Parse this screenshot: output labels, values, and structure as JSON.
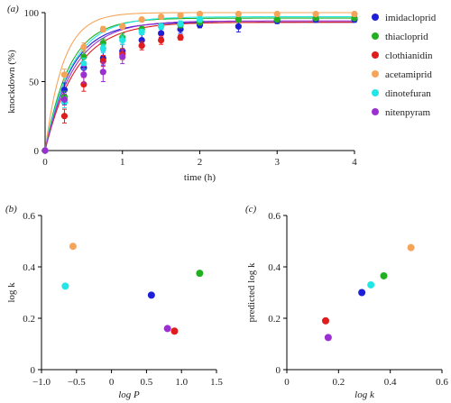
{
  "colors": {
    "imidacloprid": "#1f1fd8",
    "thiacloprid": "#22b022",
    "clothianidin": "#e01c1c",
    "acetamiprid": "#f5a55a",
    "dinotefuran": "#22e6e6",
    "nitenpyram": "#9b30d0"
  },
  "panel_labels": {
    "a": "(a)",
    "b": "(b)",
    "c": "(c)"
  },
  "chart_data": [
    {
      "panel": "a",
      "type": "line",
      "xlabel": "time (h)",
      "ylabel": "knockdown (%)",
      "xlim": [
        0,
        4
      ],
      "ylim": [
        0,
        100
      ],
      "xticks": [
        0,
        1,
        2,
        3,
        4
      ],
      "yticks": [
        0,
        50,
        100
      ],
      "grid": false,
      "legend_position": "right",
      "series": [
        {
          "name": "imidacloprid",
          "color": "#1f1fd8",
          "k": 3.0,
          "plateau": 93,
          "x": [
            0,
            0.25,
            0.5,
            0.75,
            1,
            1.25,
            1.5,
            1.75,
            2,
            2.5,
            3,
            3.5,
            4
          ],
          "y": [
            0,
            44,
            60,
            67,
            72,
            80,
            85,
            88,
            91,
            90,
            94,
            95,
            95
          ],
          "err": [
            0,
            5,
            4,
            5,
            5,
            4,
            3,
            3,
            2,
            4,
            2,
            2,
            2
          ]
        },
        {
          "name": "thiacloprid",
          "color": "#22b022",
          "k": 3.2,
          "plateau": 96,
          "x": [
            0,
            0.25,
            0.5,
            0.75,
            1,
            1.25,
            1.5,
            1.75,
            2,
            2.5,
            3,
            3.5,
            4
          ],
          "y": [
            0,
            39,
            68,
            78,
            82,
            88,
            90,
            91,
            93,
            95,
            95,
            96,
            96
          ],
          "err": [
            0,
            4,
            4,
            3,
            3,
            2,
            2,
            2,
            2,
            1,
            1,
            1,
            1
          ]
        },
        {
          "name": "clothianidin",
          "color": "#e01c1c",
          "k": 2.5,
          "plateau": 93,
          "x": [
            0,
            0.25,
            0.5,
            0.75,
            1,
            1.25,
            1.5,
            1.75
          ],
          "y": [
            0,
            25,
            48,
            65,
            70,
            76,
            80,
            82
          ],
          "err": [
            0,
            5,
            5,
            4,
            4,
            3,
            3,
            2
          ]
        },
        {
          "name": "acetamiprid",
          "color": "#f5a55a",
          "k": 4.3,
          "plateau": 100,
          "x": [
            0,
            0.25,
            0.5,
            0.75,
            1,
            1.25,
            1.5,
            1.75,
            2,
            2.5,
            3,
            3.5,
            4
          ],
          "y": [
            0,
            55,
            75,
            88,
            90,
            95,
            97,
            98,
            99,
            99,
            99,
            99,
            99
          ],
          "err": [
            0,
            4,
            3,
            2,
            2,
            1,
            1,
            1,
            1,
            1,
            1,
            1,
            1
          ]
        },
        {
          "name": "dinotefuran",
          "color": "#22e6e6",
          "k": 2.9,
          "plateau": 97,
          "x": [
            0,
            0.25,
            0.5,
            0.75,
            1,
            1.25,
            1.5,
            1.75,
            2
          ],
          "y": [
            0,
            35,
            63,
            74,
            80,
            86,
            90,
            92,
            95
          ],
          "err": [
            0,
            4,
            4,
            3,
            3,
            2,
            2,
            2,
            2
          ]
        },
        {
          "name": "nitenpyram",
          "color": "#9b30d0",
          "k": 2.7,
          "plateau": 94,
          "x": [
            0,
            0.25,
            0.5,
            0.75,
            1
          ],
          "y": [
            0,
            37,
            55,
            57,
            68
          ],
          "err": [
            0,
            4,
            6,
            7,
            5
          ]
        }
      ]
    },
    {
      "panel": "b",
      "type": "scatter",
      "xlabel": "log P",
      "ylabel": "log k",
      "xlim": [
        -1.0,
        1.5
      ],
      "ylim": [
        0,
        0.6
      ],
      "xticks": [
        "−1.0",
        "−0.5",
        "0",
        "0.5",
        "1.0",
        "1.5"
      ],
      "xtick_values": [
        -1.0,
        -0.5,
        0,
        0.5,
        1.0,
        1.5
      ],
      "yticks": [
        "0",
        "0.2",
        "0.4",
        "0.6"
      ],
      "ytick_values": [
        0,
        0.2,
        0.4,
        0.6
      ],
      "points": [
        {
          "name": "acetamiprid",
          "x": -0.55,
          "y": 0.48
        },
        {
          "name": "dinotefuran",
          "x": -0.66,
          "y": 0.325
        },
        {
          "name": "imidacloprid",
          "x": 0.57,
          "y": 0.29
        },
        {
          "name": "thiacloprid",
          "x": 1.26,
          "y": 0.375
        },
        {
          "name": "nitenpyram",
          "x": 0.8,
          "y": 0.16
        },
        {
          "name": "clothianidin",
          "x": 0.9,
          "y": 0.15
        }
      ]
    },
    {
      "panel": "c",
      "type": "scatter",
      "xlabel": "log k",
      "ylabel": "predicted log k",
      "xlim": [
        0,
        0.6
      ],
      "ylim": [
        0,
        0.6
      ],
      "xticks": [
        "0",
        "0.2",
        "0.4",
        "0.6"
      ],
      "xtick_values": [
        0,
        0.2,
        0.4,
        0.6
      ],
      "yticks": [
        "0",
        "0.2",
        "0.4",
        "0.6"
      ],
      "ytick_values": [
        0,
        0.2,
        0.4,
        0.6
      ],
      "points": [
        {
          "name": "acetamiprid",
          "x": 0.48,
          "y": 0.475
        },
        {
          "name": "thiacloprid",
          "x": 0.375,
          "y": 0.365
        },
        {
          "name": "dinotefuran",
          "x": 0.325,
          "y": 0.33
        },
        {
          "name": "imidacloprid",
          "x": 0.29,
          "y": 0.3
        },
        {
          "name": "clothianidin",
          "x": 0.15,
          "y": 0.19
        },
        {
          "name": "nitenpyram",
          "x": 0.16,
          "y": 0.125
        }
      ]
    }
  ]
}
